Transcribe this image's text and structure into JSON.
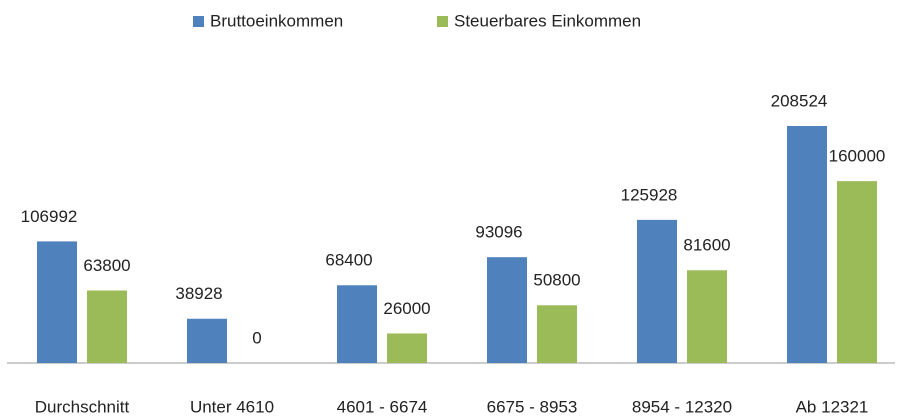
{
  "chart_data": {
    "type": "bar",
    "categories": [
      "Durchschnitt",
      "Unter 4610",
      "4601 - 6674",
      "6675 - 8953",
      "8954 - 12320",
      "Ab 12321"
    ],
    "series": [
      {
        "name": "Bruttoeinkommen",
        "color": "#4f81bd",
        "values": [
          106992,
          38928,
          68400,
          93096,
          125928,
          208524
        ]
      },
      {
        "name": "Steuerbares Einkommen",
        "color": "#9bbb59",
        "values": [
          63800,
          0,
          26000,
          50800,
          81600,
          160000
        ]
      }
    ],
    "legend": "top"
  }
}
